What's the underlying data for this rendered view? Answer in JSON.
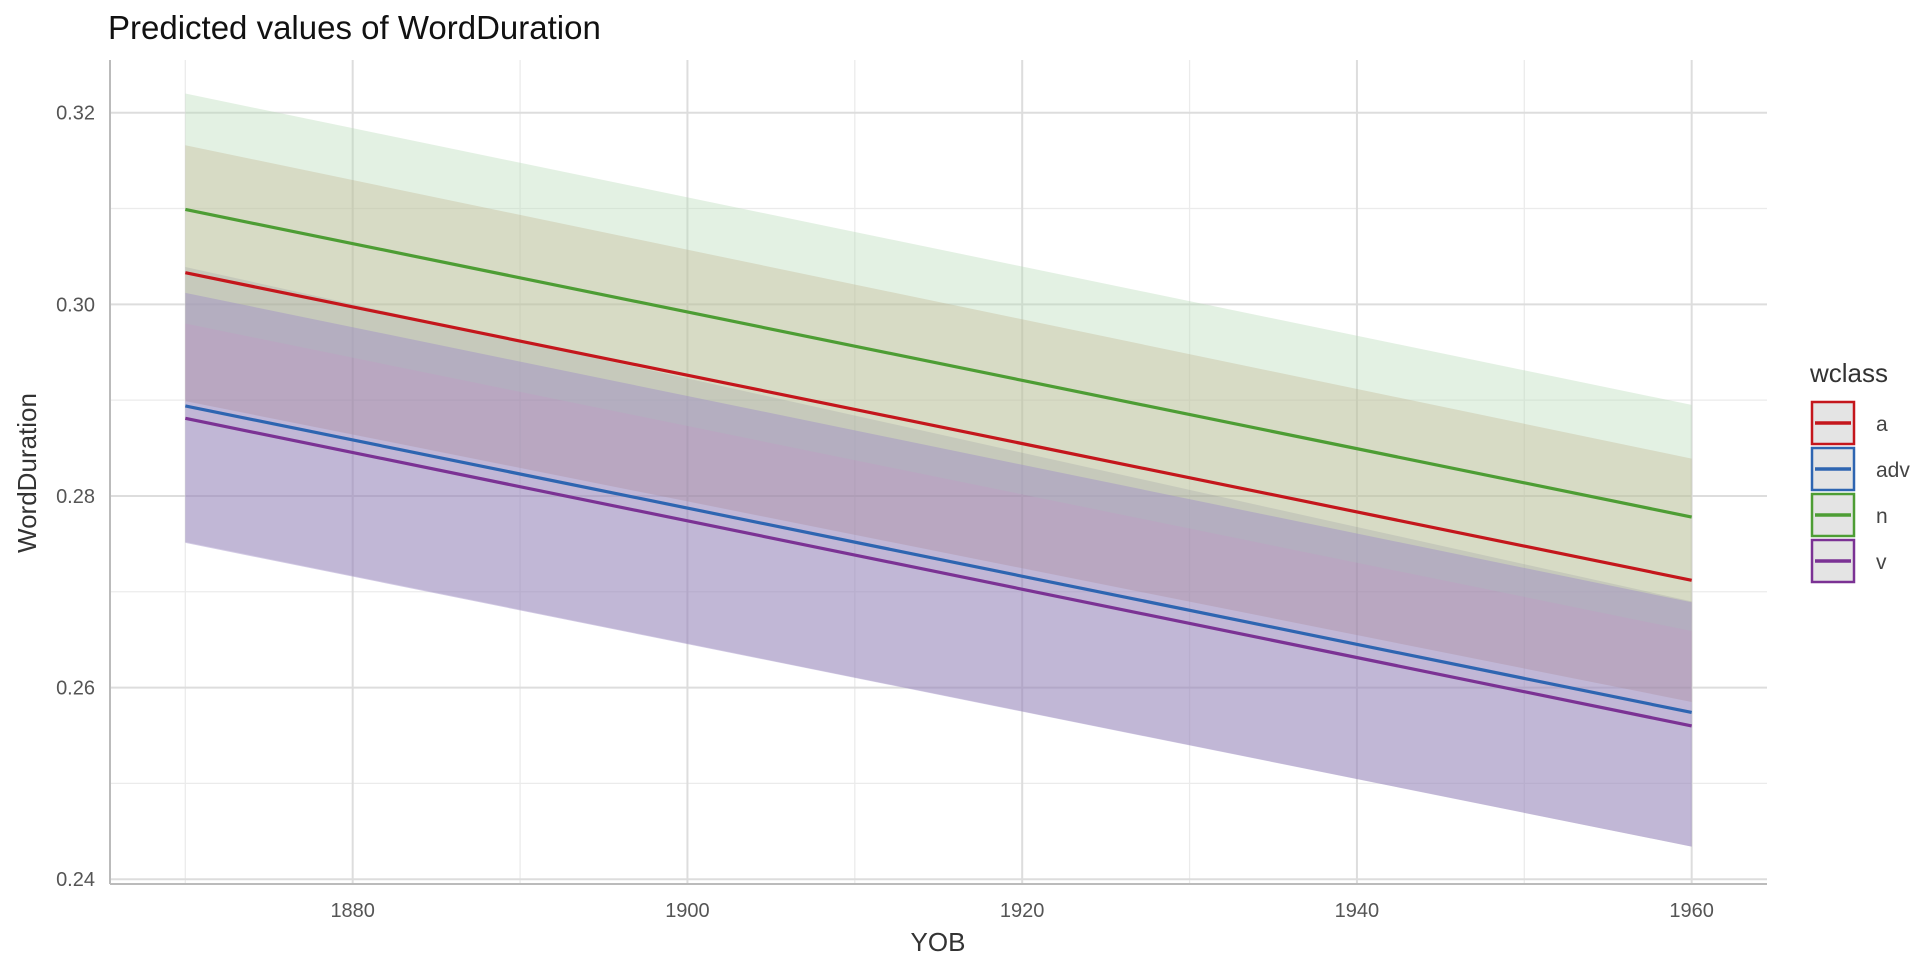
{
  "chart_data": {
    "type": "line",
    "title": "Predicted values of WordDuration",
    "xlabel": "YOB",
    "ylabel": "WordDuration",
    "xlim": [
      1865.5,
      1964.5
    ],
    "ylim": [
      0.2395,
      0.3255
    ],
    "x_ticks": [
      1880,
      1900,
      1920,
      1940,
      1960
    ],
    "x_tick_labels": [
      "1880",
      "1900",
      "1920",
      "1940",
      "1960"
    ],
    "y_ticks": [
      0.24,
      0.26,
      0.28,
      0.3,
      0.32
    ],
    "y_tick_labels": [
      "0.24",
      "0.26",
      "0.28",
      "0.30",
      "0.32"
    ],
    "grid": true,
    "legend": {
      "title": "wclass",
      "position": "right"
    },
    "x": [
      1870,
      1960
    ],
    "series": [
      {
        "name": "a",
        "color": "#C4161C",
        "values": [
          0.3033,
          0.2712
        ],
        "ci_low": [
          0.2899,
          0.2585
        ],
        "ci_high": [
          0.3166,
          0.2839
        ]
      },
      {
        "name": "adv",
        "color": "#2E65B1",
        "values": [
          0.2894,
          0.2574
        ],
        "ci_low": [
          0.2752,
          0.2434
        ],
        "ci_high": [
          0.3039,
          0.269
        ]
      },
      {
        "name": "n",
        "color": "#4D9D34",
        "values": [
          0.3099,
          0.2778
        ],
        "ci_low": [
          0.298,
          0.2659
        ],
        "ci_high": [
          0.322,
          0.2895
        ]
      },
      {
        "name": "v",
        "color": "#7B3294",
        "values": [
          0.2881,
          0.256
        ],
        "ci_low": [
          0.2751,
          0.2434
        ],
        "ci_high": [
          0.3012,
          0.2689
        ]
      }
    ]
  },
  "style": {
    "band_colors": {
      "a": "#C3936C",
      "adv": "#5E4C7E",
      "n": "#B8DCBA",
      "v": "#A090C6"
    },
    "band_opacity": {
      "a": 0.34,
      "adv": 0.2,
      "n": 0.4,
      "v": 0.48
    },
    "grid_major_color": "#DDDDDD",
    "grid_minor_color": "#EBEBEB",
    "axis_line_color": "#BBBBBB",
    "legend_key_fill": "#E4E4E4"
  }
}
